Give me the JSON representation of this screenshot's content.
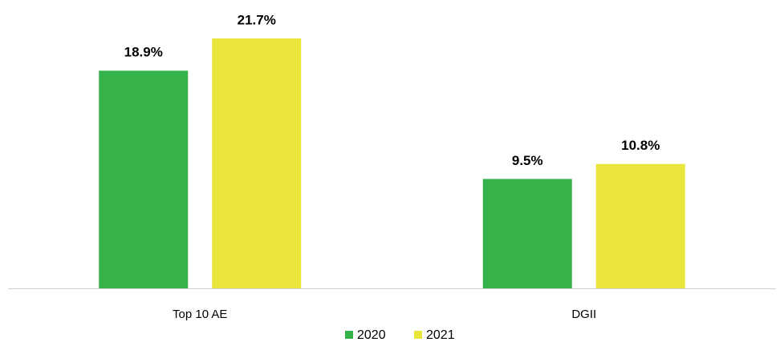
{
  "chart_data": {
    "type": "bar",
    "categories": [
      "Top 10 AE",
      "DGII"
    ],
    "series": [
      {
        "name": "2020",
        "color": "#35b34a",
        "values": [
          18.9,
          9.5
        ],
        "value_labels": [
          "18.9%",
          "9.5%"
        ]
      },
      {
        "name": "2021",
        "color": "#eae53b",
        "values": [
          21.7,
          10.8
        ],
        "value_labels": [
          "21.7%",
          "10.8%"
        ]
      }
    ]
  }
}
